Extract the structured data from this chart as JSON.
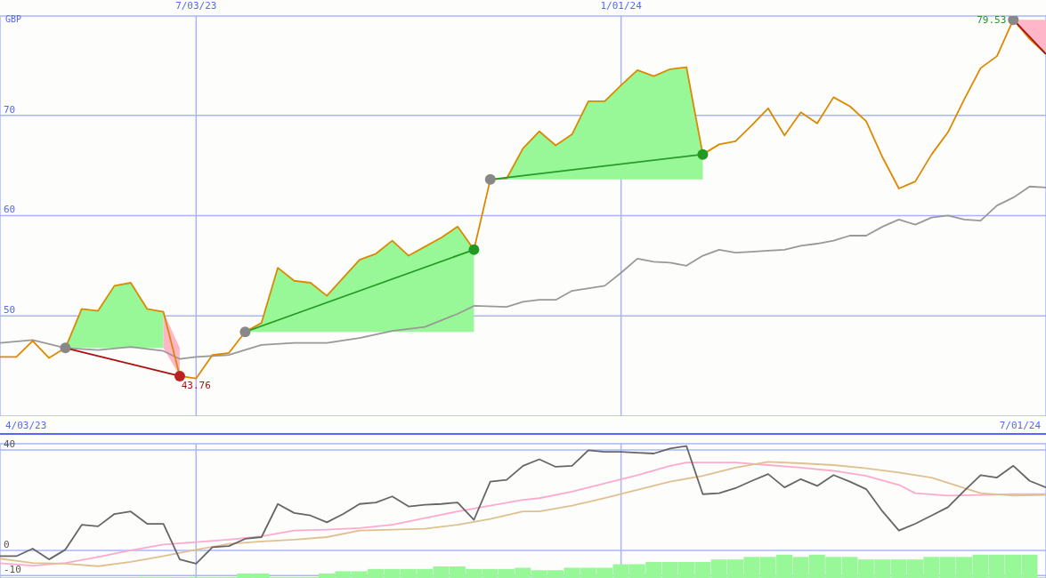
{
  "chart_data": [
    {
      "type": "line",
      "ylabel": "GBP",
      "x": [
        "2023-04-10",
        "2023-04-17",
        "2023-04-24",
        "2023-05-01",
        "2023-05-08",
        "2023-05-15",
        "2023-05-22",
        "2023-05-29",
        "2023-06-05",
        "2023-06-12",
        "2023-06-19",
        "2023-06-26",
        "2023-07-03",
        "2023-07-10",
        "2023-07-17",
        "2023-07-24",
        "2023-07-31",
        "2023-08-07",
        "2023-08-14",
        "2023-08-21",
        "2023-08-28",
        "2023-09-04",
        "2023-09-11",
        "2023-09-18",
        "2023-09-25",
        "2023-10-02",
        "2023-10-09",
        "2023-10-16",
        "2023-10-23",
        "2023-10-30",
        "2023-11-06",
        "2023-11-13",
        "2023-11-20",
        "2023-11-27",
        "2023-12-04",
        "2023-12-11",
        "2023-12-18",
        "2023-12-25",
        "2024-01-01",
        "2024-01-08",
        "2024-01-15",
        "2024-01-22",
        "2024-01-29",
        "2024-02-05",
        "2024-02-12",
        "2024-02-19",
        "2024-02-26",
        "2024-03-04",
        "2024-03-11",
        "2024-03-18",
        "2024-03-25",
        "2024-04-01",
        "2024-04-08",
        "2024-04-15",
        "2024-04-22",
        "2024-04-29",
        "2024-05-06",
        "2024-05-13",
        "2024-05-20",
        "2024-05-27",
        "2024-06-03",
        "2024-06-10",
        "2024-06-17",
        "2024-06-24",
        "2024-07-01"
      ],
      "xlim": [
        "2023-04-10",
        "2024-07-01"
      ],
      "xticks": [
        {
          "value": "2023-07-03",
          "label": "7/03/23"
        },
        {
          "value": "2024-01-01",
          "label": "1/01/24"
        }
      ],
      "ylim": [
        40,
        79.9
      ],
      "yticks": [
        50,
        60,
        70
      ],
      "grid": true,
      "series": [
        {
          "color": "#98f898",
          "x": [
            "2023-05-08",
            "2023-05-15",
            "2023-05-22",
            "2023-05-29",
            "2023-06-05",
            "2023-06-12",
            "2023-06-19"
          ],
          "values": [
            null,
            null,
            null,
            null,
            null,
            null,
            null
          ],
          "upper": [
            46.8,
            50.7,
            50.5,
            53.0,
            53.3,
            50.7,
            50.4
          ],
          "lower": [
            46.8,
            46.8,
            46.8,
            46.8,
            46.8,
            46.8,
            46.8
          ]
        },
        {
          "color": "#ffb6c8",
          "x": [
            "2023-06-19",
            "2023-06-26"
          ],
          "values": [
            null,
            null
          ],
          "upper": [
            50.4,
            46.8
          ],
          "lower": [
            46.8,
            44.0
          ]
        },
        {
          "color": "#98f898",
          "x": [
            "2023-07-24",
            "2023-07-31",
            "2023-08-07",
            "2023-08-14",
            "2023-08-21",
            "2023-08-28",
            "2023-09-04",
            "2023-09-11",
            "2023-09-18",
            "2023-09-25",
            "2023-10-02",
            "2023-10-09",
            "2023-10-16",
            "2023-10-23",
            "2023-10-30"
          ],
          "values": [
            null,
            null,
            null,
            null,
            null,
            null,
            null,
            null,
            null,
            null,
            null,
            null,
            null,
            null,
            null
          ],
          "upper": [
            48.4,
            49.3,
            54.8,
            53.5,
            53.3,
            52.0,
            53.8,
            55.6,
            56.2,
            57.5,
            56.0,
            56.9,
            57.8,
            58.9,
            56.6
          ],
          "lower": [
            48.4,
            48.4,
            48.4,
            48.4,
            48.4,
            48.4,
            48.4,
            48.4,
            48.4,
            48.4,
            48.4,
            48.4,
            48.4,
            48.4,
            48.4
          ]
        },
        {
          "color": "#98f898",
          "x": [
            "2023-11-06",
            "2023-11-13",
            "2023-11-20",
            "2023-11-27",
            "2023-12-04",
            "2023-12-11",
            "2023-12-18",
            "2023-12-25",
            "2024-01-01",
            "2024-01-08",
            "2024-01-15",
            "2024-01-22",
            "2024-01-29",
            "2024-02-05"
          ],
          "values": [
            null,
            null,
            null,
            null,
            null,
            null,
            null,
            null,
            null,
            null,
            null,
            null,
            null,
            null
          ],
          "upper": [
            63.6,
            63.7,
            66.7,
            68.4,
            67.0,
            68.1,
            71.4,
            71.4,
            73.0,
            74.5,
            73.9,
            74.6,
            74.8,
            66.1
          ],
          "lower": [
            63.6,
            63.6,
            63.6,
            63.6,
            63.6,
            63.6,
            63.6,
            63.6,
            63.6,
            63.6,
            63.6,
            63.6,
            63.6,
            63.6
          ]
        },
        {
          "color": "#ffb6c8",
          "x": [
            "2024-06-17",
            "2024-06-24",
            "2024-07-01"
          ],
          "values": [
            null,
            null,
            null
          ],
          "upper": [
            79.53,
            79.53,
            79.53
          ],
          "lower": [
            79.53,
            77.6,
            76.1
          ]
        },
        {
          "color": "#999999",
          "x": [
            "2023-04-10",
            "2023-04-24",
            "2023-05-08",
            "2023-05-22",
            "2023-06-05",
            "2023-06-19",
            "2023-06-26",
            "2023-07-03",
            "2023-07-17",
            "2023-07-31",
            "2023-08-14",
            "2023-08-28",
            "2023-09-11",
            "2023-09-25",
            "2023-10-09",
            "2023-10-23",
            "2023-10-30",
            "2023-11-13",
            "2023-11-20",
            "2023-11-27",
            "2023-12-04",
            "2023-12-11",
            "2023-12-25",
            "2024-01-01",
            "2024-01-08",
            "2024-01-15",
            "2024-01-22",
            "2024-01-29",
            "2024-02-05",
            "2024-02-12",
            "2024-02-19",
            "2024-02-26",
            "2024-03-04",
            "2024-03-11",
            "2024-03-18",
            "2024-03-25",
            "2024-04-01",
            "2024-04-08",
            "2024-04-15",
            "2024-04-22",
            "2024-04-29",
            "2024-05-06",
            "2024-05-13",
            "2024-05-20",
            "2024-05-27",
            "2024-06-03",
            "2024-06-10",
            "2024-06-17",
            "2024-06-24",
            "2024-07-01"
          ],
          "values": [
            47.3,
            47.6,
            46.8,
            46.6,
            46.9,
            46.5,
            45.7,
            45.9,
            46.1,
            47.1,
            47.3,
            47.3,
            47.8,
            48.5,
            48.9,
            50.2,
            51.0,
            50.9,
            51.4,
            51.6,
            51.6,
            52.5,
            53.0,
            54.3,
            55.7,
            55.4,
            55.3,
            55.0,
            56.0,
            56.6,
            56.3,
            56.4,
            56.5,
            56.6,
            57.0,
            57.2,
            57.5,
            58.0,
            58.0,
            58.9,
            59.6,
            59.1,
            59.8,
            60.0,
            59.6,
            59.5,
            61.0,
            61.8,
            62.9,
            62.8
          ]
        },
        {
          "color": "#dd8800",
          "values": [
            45.9,
            45.9,
            47.5,
            45.8,
            46.8,
            50.7,
            50.5,
            53.0,
            53.3,
            50.7,
            50.4,
            44.0,
            43.76,
            46.1,
            46.3,
            48.4,
            49.3,
            54.8,
            53.5,
            53.3,
            52.0,
            53.8,
            55.6,
            56.2,
            57.5,
            56.0,
            56.9,
            57.8,
            58.9,
            56.6,
            63.6,
            63.7,
            66.7,
            68.4,
            67.0,
            68.1,
            71.4,
            71.4,
            73.0,
            74.5,
            73.9,
            74.6,
            74.8,
            66.1,
            67.1,
            67.4,
            69.0,
            70.7,
            68.0,
            70.3,
            69.2,
            71.8,
            70.9,
            69.4,
            65.8,
            62.7,
            63.4,
            66.1,
            68.3,
            71.6,
            74.7,
            75.9,
            79.53,
            77.6,
            76.1
          ]
        },
        {
          "color": "#aa1111",
          "marker": "circle",
          "x": [
            "2023-05-08",
            "2023-06-26"
          ],
          "values": [
            46.8,
            44.0
          ],
          "colors": [
            "#888888",
            "#bb2222"
          ]
        },
        {
          "color": "#229922",
          "marker": "circle",
          "x": [
            "2023-07-24",
            "2023-10-30"
          ],
          "values": [
            48.4,
            56.6
          ],
          "colors": [
            "#888888",
            "#229922"
          ]
        },
        {
          "color": "#2a9a2a",
          "marker": "circle",
          "x": [
            "2023-11-06",
            "2024-02-05"
          ],
          "values": [
            63.6,
            66.1
          ],
          "colors": [
            "#888888",
            "#229922"
          ]
        },
        {
          "color": "#a51515",
          "marker": "circle",
          "x": [
            "2024-06-17",
            "2024-07-01"
          ],
          "values": [
            79.53,
            76.1
          ],
          "colors": [
            "#888888",
            null
          ]
        }
      ],
      "annotations": [
        {
          "text": "43.76",
          "x": "2023-07-03",
          "y": 43.76
        },
        {
          "text": "79.53",
          "x": "2024-06-17",
          "y": 79.53
        }
      ]
    },
    {
      "type": "line",
      "x": [
        "2023-04-10",
        "2023-04-17",
        "2023-04-24",
        "2023-05-01",
        "2023-05-08",
        "2023-05-15",
        "2023-05-22",
        "2023-05-29",
        "2023-06-05",
        "2023-06-12",
        "2023-06-19",
        "2023-06-26",
        "2023-07-03",
        "2023-07-10",
        "2023-07-17",
        "2023-07-24",
        "2023-07-31",
        "2023-08-07",
        "2023-08-14",
        "2023-08-21",
        "2023-08-28",
        "2023-09-04",
        "2023-09-11",
        "2023-09-18",
        "2023-09-25",
        "2023-10-02",
        "2023-10-09",
        "2023-10-16",
        "2023-10-23",
        "2023-10-30",
        "2023-11-06",
        "2023-11-13",
        "2023-11-20",
        "2023-11-27",
        "2023-12-04",
        "2023-12-11",
        "2023-12-18",
        "2023-12-25",
        "2024-01-01",
        "2024-01-08",
        "2024-01-15",
        "2024-01-22",
        "2024-01-29",
        "2024-02-05",
        "2024-02-12",
        "2024-02-19",
        "2024-02-26",
        "2024-03-04",
        "2024-03-11",
        "2024-03-18",
        "2024-03-25",
        "2024-04-01",
        "2024-04-08",
        "2024-04-15",
        "2024-04-22",
        "2024-04-29",
        "2024-05-06",
        "2024-05-13",
        "2024-05-20",
        "2024-05-27",
        "2024-06-03",
        "2024-06-10",
        "2024-06-17",
        "2024-06-24",
        "2024-07-01"
      ],
      "xlim": [
        "2023-04-10",
        "2024-07-01"
      ],
      "xticks": [
        {
          "value": "2023-07-03",
          "label": null
        },
        {
          "value": "2024-01-01",
          "label": null
        }
      ],
      "ylim": [
        -11,
        42.5
      ],
      "yticks": [
        -10,
        0,
        40
      ],
      "grid": true,
      "tick_labels": "y",
      "series": [
        {
          "type": "bar",
          "color": "#98f898",
          "x": [
            "2023-06-12",
            "2023-06-19",
            "2023-07-03",
            "2023-07-10",
            "2023-07-17",
            "2023-07-24",
            "2023-07-31",
            "2023-08-07",
            "2023-08-14",
            "2023-08-21",
            "2023-08-28",
            "2023-09-04",
            "2023-09-11",
            "2023-09-18",
            "2023-09-25",
            "2023-10-02",
            "2023-10-09",
            "2023-10-16",
            "2023-10-23",
            "2023-10-30",
            "2023-11-06",
            "2023-11-13",
            "2023-11-20",
            "2023-11-27",
            "2023-12-04",
            "2023-12-11",
            "2023-12-18",
            "2023-12-25",
            "2024-01-01",
            "2024-01-08",
            "2024-01-15",
            "2024-01-22",
            "2024-01-29",
            "2024-02-05",
            "2024-02-12",
            "2024-02-19",
            "2024-02-26",
            "2024-03-04",
            "2024-03-11",
            "2024-03-18",
            "2024-03-25",
            "2024-04-01",
            "2024-04-08",
            "2024-04-15",
            "2024-04-22",
            "2024-04-29",
            "2024-05-06",
            "2024-05-13",
            "2024-05-20",
            "2024-05-27",
            "2024-06-03",
            "2024-06-10",
            "2024-06-17",
            "2024-06-24"
          ],
          "values": [
            0.4,
            0.4,
            0.4,
            0.4,
            0.4,
            1.8,
            1.8,
            0.4,
            0.4,
            0.4,
            1.8,
            2.7,
            2.7,
            3.6,
            3.6,
            3.6,
            3.6,
            4.6,
            4.6,
            3.6,
            3.6,
            3.6,
            4.1,
            3.1,
            3.1,
            4.1,
            4.1,
            4.1,
            5.5,
            5.5,
            6.4,
            6.4,
            6.4,
            6.4,
            7.4,
            7.4,
            8.4,
            8.4,
            9.3,
            8.4,
            9.3,
            8.4,
            8.4,
            7.4,
            7.4,
            7.4,
            7.4,
            8.4,
            8.4,
            8.4,
            9.3,
            9.3,
            9.3,
            9.3
          ],
          "base": [
            -11,
            -11,
            -11,
            -11,
            -11,
            -11,
            -11,
            -11,
            -11,
            -11,
            -11,
            -11,
            -11,
            -11,
            -11,
            -11,
            -11,
            -11,
            -11,
            -11,
            -11,
            -11,
            -11,
            -11,
            -11,
            -11,
            -11,
            -11,
            -11,
            -11,
            -11,
            -11,
            -11,
            -11,
            -11,
            -11,
            -11,
            -11,
            -11,
            -11,
            -11,
            -11,
            -11,
            -11,
            -11,
            -11,
            -11,
            -11,
            -11,
            -11,
            -11,
            -11,
            -11,
            -11
          ]
        },
        {
          "color": "#ffaacc",
          "x": [
            "2023-04-10",
            "2023-04-24",
            "2023-05-08",
            "2023-05-22",
            "2023-06-05",
            "2023-06-19",
            "2023-07-03",
            "2023-07-17",
            "2023-07-31",
            "2023-08-14",
            "2023-08-28",
            "2023-09-11",
            "2023-09-25",
            "2023-10-09",
            "2023-10-23",
            "2023-11-06",
            "2023-11-20",
            "2023-11-27",
            "2023-12-11",
            "2023-12-25",
            "2024-01-08",
            "2024-01-22",
            "2024-01-29",
            "2024-02-05",
            "2024-02-19",
            "2024-03-04",
            "2024-03-18",
            "2024-04-01",
            "2024-04-15",
            "2024-04-29",
            "2024-05-06",
            "2024-05-20",
            "2024-06-03",
            "2024-06-17",
            "2024-07-01"
          ],
          "values": [
            -5.1,
            -6.1,
            -5.0,
            -2.6,
            0,
            2.3,
            3.3,
            4.3,
            5.6,
            7.9,
            8.3,
            8.9,
            10.2,
            12.9,
            15.5,
            17.8,
            20.1,
            20.8,
            23.4,
            26.7,
            30.0,
            33.7,
            35.0,
            35.0,
            35.0,
            34.0,
            33.0,
            31.7,
            29.7,
            26.1,
            22.8,
            21.8,
            22.1,
            22.4,
            22.4
          ]
        },
        {
          "color": "#e0c090",
          "x": [
            "2023-04-10",
            "2023-04-24",
            "2023-05-08",
            "2023-05-22",
            "2023-06-05",
            "2023-06-19",
            "2023-07-03",
            "2023-07-17",
            "2023-07-31",
            "2023-08-14",
            "2023-08-28",
            "2023-09-11",
            "2023-09-25",
            "2023-10-09",
            "2023-10-23",
            "2023-11-06",
            "2023-11-20",
            "2023-11-27",
            "2023-12-11",
            "2023-12-25",
            "2024-01-08",
            "2024-01-22",
            "2024-02-05",
            "2024-02-19",
            "2024-03-04",
            "2024-03-18",
            "2024-04-01",
            "2024-04-15",
            "2024-04-29",
            "2024-05-13",
            "2024-05-27",
            "2024-06-03",
            "2024-06-17",
            "2024-07-01"
          ],
          "values": [
            -3.3,
            -5.0,
            -5.3,
            -6.3,
            -4.6,
            -2.3,
            0.3,
            2.6,
            3.6,
            4.3,
            5.3,
            7.9,
            8.3,
            8.6,
            10.2,
            12.5,
            15.5,
            15.5,
            17.8,
            20.8,
            24.1,
            27.4,
            29.7,
            33.0,
            35.3,
            34.7,
            34.0,
            32.7,
            31.0,
            29.0,
            24.8,
            22.8,
            21.8,
            22.1
          ]
        },
        {
          "color": "#666666",
          "values": [
            -2.3,
            -2.3,
            0.7,
            -3.6,
            0.3,
            10.2,
            9.6,
            14.5,
            15.5,
            10.6,
            10.6,
            -3.6,
            -5.3,
            1.3,
            1.7,
            4.6,
            5.3,
            18.5,
            14.9,
            13.9,
            11.2,
            14.5,
            18.5,
            19.1,
            21.5,
            17.5,
            18.2,
            18.5,
            19.1,
            12.2,
            27.4,
            28.1,
            33.7,
            36.3,
            33.3,
            33.7,
            39.9,
            39.3,
            39.3,
            38.9,
            38.6,
            40.6,
            41.6,
            22.4,
            22.8,
            24.8,
            27.7,
            30.4,
            25.1,
            28.4,
            25.7,
            30.0,
            27.4,
            24.4,
            15.5,
            7.9,
            10.6,
            13.9,
            17.2,
            23.8,
            30.0,
            29.0,
            33.7,
            27.7,
            25.1
          ]
        }
      ],
      "annotations": [
        "4/03/23",
        "7/01/24"
      ]
    }
  ]
}
